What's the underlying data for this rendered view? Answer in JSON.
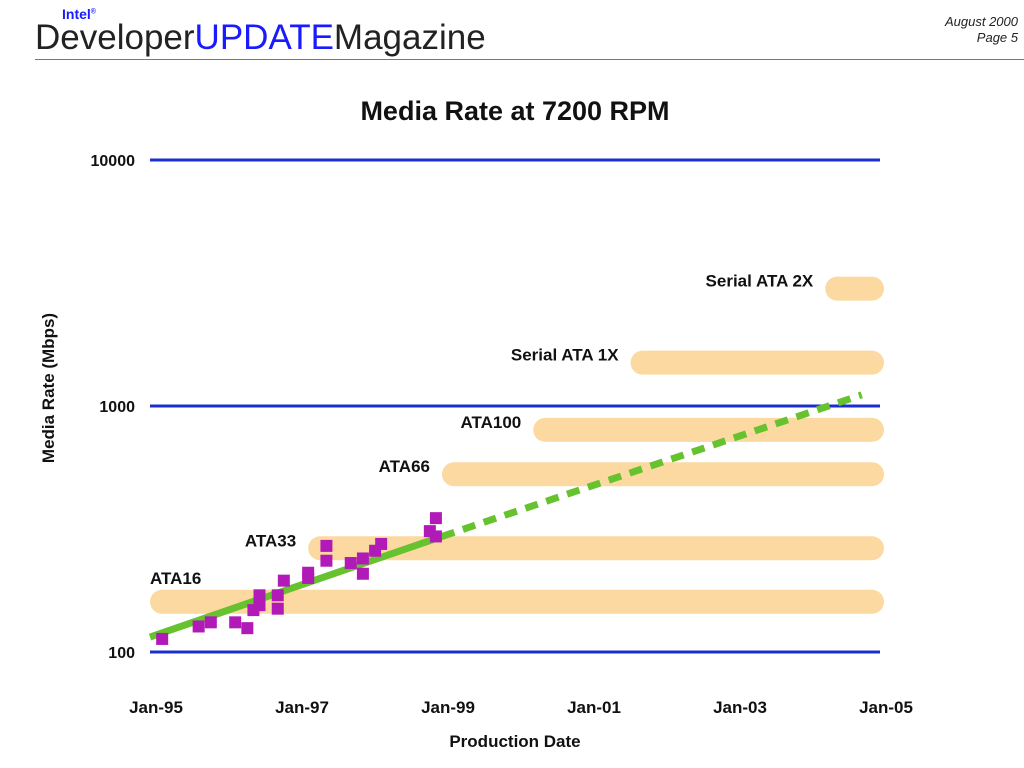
{
  "header": {
    "brand_intel": "Intel",
    "brand_reg": "®",
    "brand_developer": "Developer",
    "brand_update": "UPDATE",
    "brand_magazine": "Magazine",
    "issue_date": "August 2000",
    "page_number": "Page 5"
  },
  "colors": {
    "gridline": "#1a2fd0",
    "band": "#fcd9a0",
    "trend": "#66c22e",
    "marker": "#b21ab8",
    "text": "#111111",
    "brand_blue": "#1a1aff"
  },
  "chart_data": {
    "type": "scatter",
    "title": "Media Rate at 7200 RPM",
    "xlabel": "Production Date",
    "ylabel": "Media Rate (Mbps)",
    "yscale": "log",
    "ylim": [
      100,
      10000
    ],
    "xlim": [
      "1995-01",
      "2005-01"
    ],
    "x_ticks": [
      "Jan-95",
      "Jan-97",
      "Jan-99",
      "Jan-01",
      "Jan-03",
      "Jan-05"
    ],
    "y_ticks": [
      "100",
      "1000",
      "10000"
    ],
    "grid": "major horizontal only",
    "interfaces": [
      {
        "name": "ATA16",
        "start": "1995-01",
        "rate": 160
      },
      {
        "name": "ATA33",
        "start": "1997-03",
        "rate": 264
      },
      {
        "name": "ATA66",
        "start": "1999-01",
        "rate": 528
      },
      {
        "name": "ATA100",
        "start": "2000-04",
        "rate": 800
      },
      {
        "name": "Serial ATA 1X",
        "start": "2001-08",
        "rate": 1500
      },
      {
        "name": "Serial ATA 2X",
        "start": "2004-04",
        "rate": 3000
      }
    ],
    "trend": {
      "solid": [
        [
          "1995-01",
          115
        ],
        [
          "1999-01",
          295
        ]
      ],
      "dashed": [
        [
          "1999-01",
          295
        ],
        [
          "2004-10",
          1110
        ]
      ]
    },
    "points": [
      [
        "1995-03",
        113
      ],
      [
        "1995-09",
        127
      ],
      [
        "1995-11",
        132
      ],
      [
        "1996-03",
        132
      ],
      [
        "1996-05",
        125
      ],
      [
        "1996-06",
        148
      ],
      [
        "1996-07",
        155
      ],
      [
        "1996-07",
        170
      ],
      [
        "1996-10",
        150
      ],
      [
        "1996-10",
        170
      ],
      [
        "1996-11",
        195
      ],
      [
        "1997-03",
        200
      ],
      [
        "1997-03",
        210
      ],
      [
        "1997-06",
        235
      ],
      [
        "1997-06",
        270
      ],
      [
        "1997-10",
        230
      ],
      [
        "1997-12",
        208
      ],
      [
        "1997-12",
        240
      ],
      [
        "1998-02",
        258
      ],
      [
        "1998-03",
        275
      ],
      [
        "1998-11",
        310
      ],
      [
        "1998-12",
        295
      ],
      [
        "1999-00",
        350
      ]
    ]
  }
}
